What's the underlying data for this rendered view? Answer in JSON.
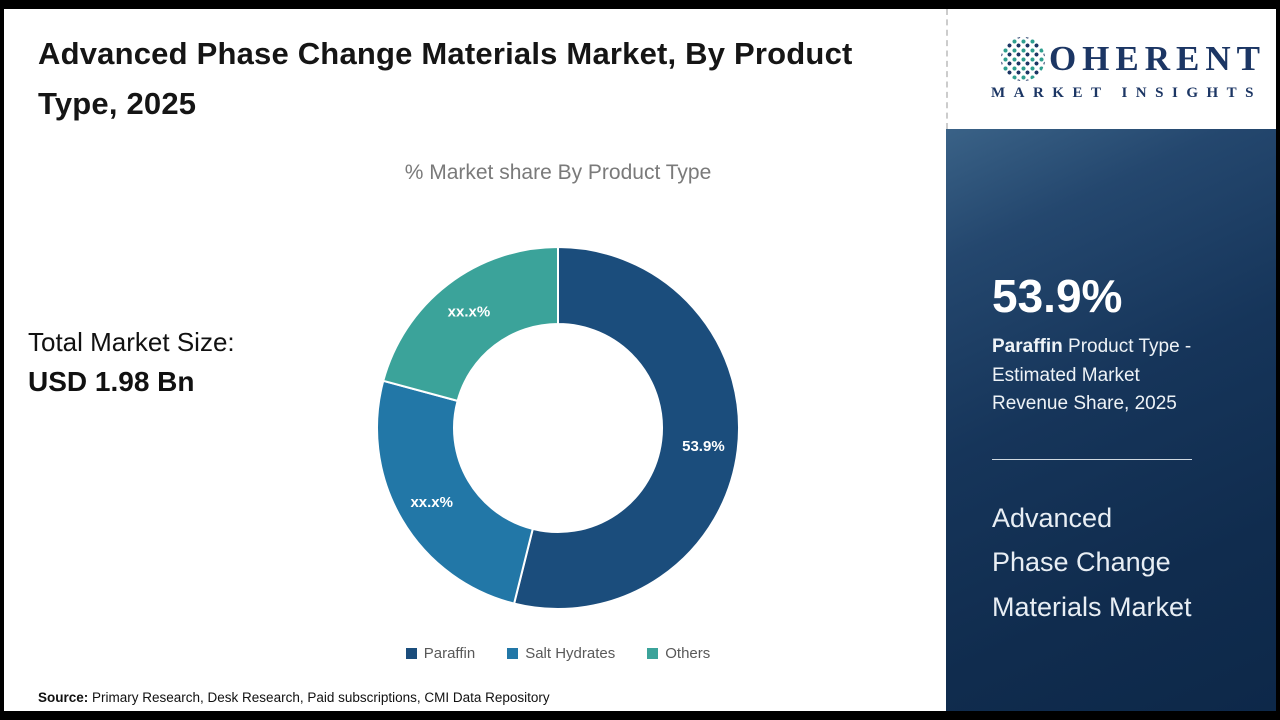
{
  "header": {
    "title": "Advanced Phase Change Materials Market, By Product Type, 2025"
  },
  "logo": {
    "brand_rest": "OHERENT",
    "tagline": "MARKET INSIGHTS",
    "navy": "#1c3664",
    "teal": "#2f9e8f"
  },
  "total": {
    "label": "Total Market Size:",
    "value": "USD 1.98 Bn"
  },
  "chart_data": {
    "type": "pie",
    "donut": true,
    "title": "% Market share By Product Type",
    "legend_position": "bottom",
    "segments": [
      {
        "name": "Paraffin",
        "label": "53.9%",
        "value": 53.9,
        "color": "#1b4d7c"
      },
      {
        "name": "Salt Hydrates",
        "label": "xx.x%",
        "value": 25.3,
        "color": "#2277a7"
      },
      {
        "name": "Others",
        "label": "xx.x%",
        "value": 20.8,
        "color": "#3ba39a"
      }
    ]
  },
  "sidebar": {
    "stat_value": "53.9%",
    "stat_desc_bold": "Paraffin",
    "stat_desc_rest": " Product Type - Estimated Market Revenue Share, 2025",
    "market_name": "Advanced Phase Change Materials Market"
  },
  "footer": {
    "source_label": "Source:",
    "source_text": " Primary Research, Desk Research, Paid subscriptions, CMI Data Repository"
  }
}
